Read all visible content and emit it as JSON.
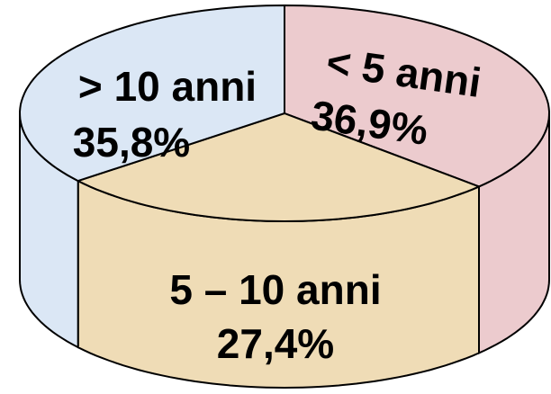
{
  "chart_data": {
    "type": "pie",
    "categories": [
      "< 5 anni",
      "5 – 10 anni",
      "> 10 anni"
    ],
    "values": [
      36.9,
      27.4,
      35.8
    ],
    "value_labels": [
      "36,9%",
      "27,4%",
      "35,8%"
    ],
    "colors": [
      "#eccbce",
      "#efdcb6",
      "#dbe7f5"
    ]
  }
}
